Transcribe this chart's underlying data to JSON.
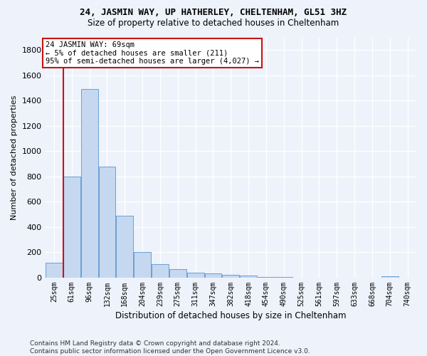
{
  "title_line1": "24, JASMIN WAY, UP HATHERLEY, CHELTENHAM, GL51 3HZ",
  "title_line2": "Size of property relative to detached houses in Cheltenham",
  "xlabel": "Distribution of detached houses by size in Cheltenham",
  "ylabel": "Number of detached properties",
  "bar_color": "#c5d8f0",
  "bar_edge_color": "#6a9fd4",
  "highlight_color": "#cc1111",
  "categories": [
    "25sqm",
    "61sqm",
    "96sqm",
    "132sqm",
    "168sqm",
    "204sqm",
    "239sqm",
    "275sqm",
    "311sqm",
    "347sqm",
    "382sqm",
    "418sqm",
    "454sqm",
    "490sqm",
    "525sqm",
    "561sqm",
    "597sqm",
    "633sqm",
    "668sqm",
    "704sqm",
    "740sqm"
  ],
  "values": [
    120,
    800,
    1490,
    880,
    490,
    205,
    105,
    65,
    40,
    32,
    25,
    15,
    8,
    3,
    2,
    1,
    1,
    1,
    1,
    10,
    0
  ],
  "highlight_bar_index": 1,
  "ylim": [
    0,
    1900
  ],
  "yticks": [
    0,
    200,
    400,
    600,
    800,
    1000,
    1200,
    1400,
    1600,
    1800
  ],
  "annotation_line1": "24 JASMIN WAY: 69sqm",
  "annotation_line2": "← 5% of detached houses are smaller (211)",
  "annotation_line3": "95% of semi-detached houses are larger (4,027) →",
  "background_color": "#edf2fb",
  "grid_color": "#ffffff",
  "footer_text": "Contains HM Land Registry data © Crown copyright and database right 2024.\nContains public sector information licensed under the Open Government Licence v3.0.",
  "fig_width": 6.0,
  "fig_height": 5.0
}
